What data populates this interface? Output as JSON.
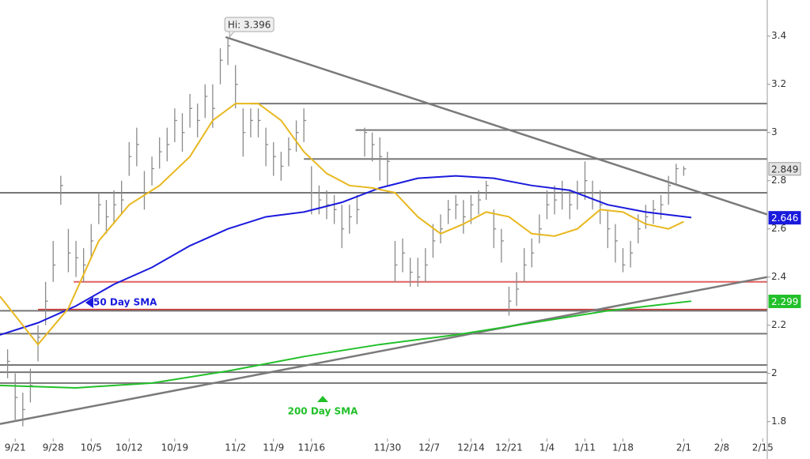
{
  "chart_data": {
    "type": "ohlc",
    "color": "#8a8a8a",
    "xlim": [
      -1,
      100
    ],
    "ylim": [
      1.73,
      3.55
    ],
    "yticks": [
      1.8,
      2,
      2.2,
      2.4,
      2.6,
      2.8,
      3,
      3.2,
      3.4
    ],
    "xticks": [
      {
        "value": 1,
        "label": "9/21"
      },
      {
        "value": 6,
        "label": "9/28"
      },
      {
        "value": 11,
        "label": "10/5"
      },
      {
        "value": 16,
        "label": "10/12"
      },
      {
        "value": 22,
        "label": "10/19"
      },
      {
        "value": 30,
        "label": "11/2"
      },
      {
        "value": 35,
        "label": "11/9"
      },
      {
        "value": 40,
        "label": "11/16"
      },
      {
        "value": 50,
        "label": "11/30"
      },
      {
        "value": 55.5,
        "label": "12/7"
      },
      {
        "value": 61,
        "label": "12/14"
      },
      {
        "value": 66,
        "label": "12/21"
      },
      {
        "value": 71,
        "label": "1/4"
      },
      {
        "value": 76,
        "label": "1/11"
      },
      {
        "value": 81,
        "label": "1/18"
      },
      {
        "value": 89,
        "label": "2/1"
      },
      {
        "value": 94,
        "label": "2/8"
      },
      {
        "value": 99.4,
        "label": "2/15"
      }
    ],
    "high": [
      2.1,
      2.0,
      1.92,
      2.02,
      2.2,
      2.38,
      2.55,
      2.82,
      2.6,
      2.55,
      2.52,
      2.62,
      2.75,
      2.72,
      2.76,
      2.8,
      2.96,
      3.02,
      2.84,
      2.9,
      2.98,
      3.02,
      3.1,
      3.08,
      3.16,
      3.12,
      3.2,
      3.2,
      3.35,
      3.396,
      3.28,
      3.1,
      3.1,
      3.1,
      3.02,
      2.96,
      2.92,
      2.98,
      3.05,
      3.1,
      2.86,
      2.78,
      2.76,
      2.74,
      2.7,
      2.7,
      2.74,
      3.02,
      3.0,
      2.98,
      2.92,
      2.55,
      2.56,
      2.48,
      2.48,
      2.52,
      2.62,
      2.66,
      2.72,
      2.74,
      2.72,
      2.74,
      2.76,
      2.8,
      2.68,
      2.6,
      2.36,
      2.42,
      2.52,
      2.56,
      2.66,
      2.76,
      2.78,
      2.8,
      2.76,
      2.8,
      2.88,
      2.8,
      2.76,
      2.68,
      2.62,
      2.52,
      2.55,
      2.66,
      2.7,
      2.72,
      2.74,
      2.82,
      2.87,
      2.86
    ],
    "low": [
      1.98,
      1.8,
      1.78,
      1.88,
      2.05,
      2.2,
      2.38,
      2.7,
      2.42,
      2.4,
      2.38,
      2.48,
      2.62,
      2.58,
      2.62,
      2.66,
      2.82,
      2.86,
      2.68,
      2.78,
      2.85,
      2.88,
      2.96,
      2.92,
      3.02,
      2.98,
      3.06,
      3.02,
      3.2,
      3.28,
      3.1,
      2.9,
      2.98,
      2.98,
      2.86,
      2.82,
      2.8,
      2.86,
      2.92,
      2.96,
      2.66,
      2.66,
      2.64,
      2.62,
      2.52,
      2.58,
      2.62,
      2.9,
      2.88,
      2.8,
      2.78,
      2.38,
      2.42,
      2.36,
      2.36,
      2.38,
      2.48,
      2.54,
      2.62,
      2.64,
      2.58,
      2.62,
      2.66,
      2.72,
      2.52,
      2.46,
      2.24,
      2.28,
      2.38,
      2.44,
      2.54,
      2.64,
      2.66,
      2.68,
      2.64,
      2.68,
      2.72,
      2.68,
      2.62,
      2.52,
      2.46,
      2.42,
      2.44,
      2.54,
      2.6,
      2.62,
      2.64,
      2.7,
      2.78,
      2.82
    ],
    "close": [
      2.05,
      1.9,
      1.85,
      1.95,
      2.15,
      2.3,
      2.45,
      2.78,
      2.5,
      2.48,
      2.45,
      2.55,
      2.7,
      2.65,
      2.7,
      2.72,
      2.9,
      2.95,
      2.75,
      2.85,
      2.92,
      2.95,
      3.05,
      3.0,
      3.1,
      3.05,
      3.15,
      3.1,
      3.3,
      3.36,
      3.2,
      3.0,
      3.05,
      3.05,
      2.95,
      2.9,
      2.86,
      2.93,
      3.0,
      3.05,
      2.75,
      2.72,
      2.7,
      2.68,
      2.6,
      2.65,
      2.68,
      3.0,
      2.95,
      2.9,
      2.88,
      2.45,
      2.5,
      2.42,
      2.4,
      2.45,
      2.55,
      2.6,
      2.68,
      2.7,
      2.65,
      2.7,
      2.72,
      2.78,
      2.6,
      2.55,
      2.3,
      2.35,
      2.45,
      2.5,
      2.6,
      2.7,
      2.72,
      2.75,
      2.7,
      2.75,
      2.8,
      2.75,
      2.7,
      2.6,
      2.55,
      2.45,
      2.5,
      2.6,
      2.65,
      2.68,
      2.7,
      2.78,
      2.85,
      2.849
    ],
    "series": [
      {
        "name": "50 Day SMA",
        "color": "#1a1adc",
        "x": [
          -1,
          4,
          9,
          14,
          19,
          24,
          29,
          34,
          39,
          44,
          49,
          54,
          59,
          64,
          69,
          74,
          79,
          84,
          90
        ],
        "values": [
          2.16,
          2.21,
          2.28,
          2.37,
          2.44,
          2.53,
          2.6,
          2.65,
          2.67,
          2.71,
          2.77,
          2.81,
          2.82,
          2.81,
          2.78,
          2.76,
          2.7,
          2.67,
          2.647
        ]
      },
      {
        "name": "200 Day SMA",
        "color": "#22c02a",
        "x": [
          -1,
          9,
          19,
          29,
          39,
          49,
          59,
          69,
          79,
          90
        ],
        "values": [
          1.95,
          1.94,
          1.96,
          2.01,
          2.07,
          2.12,
          2.16,
          2.21,
          2.26,
          2.3
        ]
      },
      {
        "color": "#e8b820",
        "x": [
          -1,
          4,
          8,
          12,
          16,
          20,
          24,
          27,
          30,
          33,
          36,
          39,
          42,
          45,
          48,
          51,
          54,
          57,
          60,
          63,
          66,
          69,
          72,
          75,
          78,
          81,
          84,
          87,
          89
        ],
        "values": [
          2.32,
          2.12,
          2.27,
          2.55,
          2.7,
          2.78,
          2.9,
          3.05,
          3.12,
          3.12,
          3.05,
          2.92,
          2.83,
          2.78,
          2.77,
          2.75,
          2.65,
          2.58,
          2.62,
          2.67,
          2.65,
          2.58,
          2.57,
          2.6,
          2.68,
          2.67,
          2.62,
          2.6,
          2.63
        ]
      }
    ],
    "levels": [
      {
        "value": 3.12,
        "from": 32,
        "color": "#777777"
      },
      {
        "value": 3.01,
        "from": 45.8,
        "color": "#777777"
      },
      {
        "value": 2.89,
        "from": 39,
        "color": "#777777"
      },
      {
        "value": 2.75,
        "from": -1,
        "color": "#777777"
      },
      {
        "value": 2.38,
        "from": 8.7,
        "color": "#e06060"
      },
      {
        "value": 2.265,
        "from": 4,
        "color": "#d03a3a"
      },
      {
        "value": 2.26,
        "from": -1,
        "color": "#777777"
      },
      {
        "value": 2.165,
        "from": -1,
        "color": "#777777"
      },
      {
        "value": 2.035,
        "from": -1,
        "color": "#777777"
      },
      {
        "value": 2.005,
        "from": -1,
        "color": "#777777"
      },
      {
        "value": 1.96,
        "from": -1,
        "color": "#777777"
      }
    ],
    "trendlines": [
      {
        "x": [
          28.7,
          100
        ],
        "values": [
          3.396,
          2.66
        ]
      },
      {
        "x": [
          -1,
          100
        ],
        "values": [
          1.79,
          2.4
        ]
      }
    ],
    "price_labels": [
      {
        "value": 2.849,
        "color": "#e4e4e4"
      },
      {
        "value": 2.646,
        "color": "#1a1adc"
      },
      {
        "value": 2.299,
        "color": "#22c02a"
      }
    ],
    "annotation": {
      "label": "Hi: 3.396",
      "x": 29,
      "value": 3.396
    }
  }
}
